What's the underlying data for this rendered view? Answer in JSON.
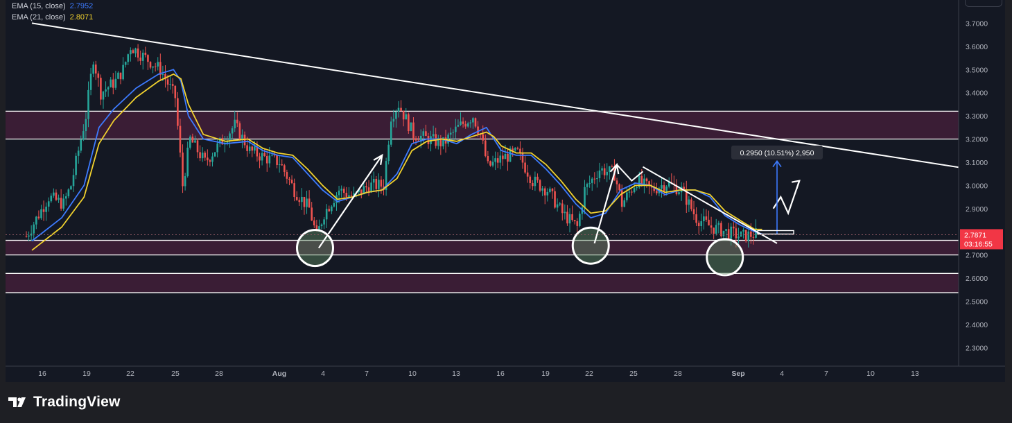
{
  "brand": {
    "name": "TradingView"
  },
  "legend": [
    {
      "label": "EMA (15, close)",
      "value": "2.7952",
      "color": "#3d7bff"
    },
    {
      "label": "EMA (21, close)",
      "value": "2.8071",
      "color": "#f2d22e"
    }
  ],
  "price_label": {
    "value": "2.7871",
    "countdown": "03:16:55",
    "color": "#f23645"
  },
  "measure_label": "0.2950 (10.51%) 2,950",
  "colors": {
    "background": "#141823",
    "zone": "#3a1d35",
    "ema15": "#3d7bff",
    "ema21": "#f2d22e",
    "up": "#26a69a",
    "down": "#ef5350"
  },
  "chart_data": {
    "type": "line",
    "y_ticks": [
      "3.7000",
      "3.6000",
      "3.5000",
      "3.4000",
      "3.3000",
      "3.2000",
      "3.1000",
      "3.0000",
      "2.9000",
      "2.8000",
      "2.7000",
      "2.6000",
      "2.5000",
      "2.4000",
      "2.3000"
    ],
    "x_ticks": [
      "16",
      "19",
      "22",
      "25",
      "28",
      "Aug",
      "4",
      "7",
      "10",
      "13",
      "16",
      "19",
      "22",
      "25",
      "28",
      "Sep",
      "4",
      "7",
      "10",
      "13"
    ],
    "ylim": [
      2.22,
      3.8
    ],
    "zones": [
      [
        3.2,
        3.32
      ],
      [
        2.7,
        2.763
      ],
      [
        2.537,
        2.62
      ]
    ],
    "series": [
      {
        "name": "EMA (15, close)",
        "color": "#3d7bff",
        "points": [
          [
            0,
            2.76
          ],
          [
            4,
            2.86
          ],
          [
            7,
            3.0
          ],
          [
            9,
            3.25
          ],
          [
            11,
            3.33
          ],
          [
            14,
            3.42
          ],
          [
            17,
            3.48
          ],
          [
            19,
            3.5
          ],
          [
            20,
            3.45
          ],
          [
            21,
            3.3
          ],
          [
            23,
            3.2
          ],
          [
            26,
            3.18
          ],
          [
            29,
            3.19
          ],
          [
            31,
            3.15
          ],
          [
            33,
            3.13
          ],
          [
            35,
            3.12
          ],
          [
            37,
            3.05
          ],
          [
            39,
            2.98
          ],
          [
            41,
            2.93
          ],
          [
            43,
            2.95
          ],
          [
            45,
            2.97
          ],
          [
            47,
            2.98
          ],
          [
            49,
            3.05
          ],
          [
            51,
            3.18
          ],
          [
            53,
            3.2
          ],
          [
            55,
            3.2
          ],
          [
            57,
            3.18
          ],
          [
            59,
            3.22
          ],
          [
            61,
            3.25
          ],
          [
            62,
            3.2
          ],
          [
            63,
            3.15
          ],
          [
            65,
            3.13
          ],
          [
            67,
            3.13
          ],
          [
            69,
            3.07
          ],
          [
            71,
            3.0
          ],
          [
            73,
            2.92
          ],
          [
            75,
            2.86
          ],
          [
            77,
            2.88
          ],
          [
            79,
            2.98
          ],
          [
            81,
            3.01
          ],
          [
            83,
            3.0
          ],
          [
            85,
            2.96
          ],
          [
            87,
            2.98
          ],
          [
            89,
            2.98
          ],
          [
            91,
            2.95
          ],
          [
            93,
            2.87
          ],
          [
            95,
            2.83
          ],
          [
            97,
            2.8
          ],
          [
            98,
            2.79
          ]
        ]
      },
      {
        "name": "EMA (21, close)",
        "color": "#f2d22e",
        "points": [
          [
            0,
            2.72
          ],
          [
            4,
            2.82
          ],
          [
            7,
            2.95
          ],
          [
            9,
            3.18
          ],
          [
            11,
            3.28
          ],
          [
            14,
            3.38
          ],
          [
            17,
            3.45
          ],
          [
            19,
            3.48
          ],
          [
            20,
            3.46
          ],
          [
            21,
            3.35
          ],
          [
            23,
            3.22
          ],
          [
            26,
            3.19
          ],
          [
            29,
            3.2
          ],
          [
            31,
            3.16
          ],
          [
            33,
            3.14
          ],
          [
            35,
            3.13
          ],
          [
            37,
            3.07
          ],
          [
            39,
            3.0
          ],
          [
            41,
            2.94
          ],
          [
            43,
            2.95
          ],
          [
            45,
            2.97
          ],
          [
            47,
            2.98
          ],
          [
            49,
            3.03
          ],
          [
            51,
            3.15
          ],
          [
            53,
            3.19
          ],
          [
            55,
            3.2
          ],
          [
            57,
            3.19
          ],
          [
            59,
            3.21
          ],
          [
            61,
            3.23
          ],
          [
            62,
            3.21
          ],
          [
            63,
            3.17
          ],
          [
            65,
            3.14
          ],
          [
            67,
            3.14
          ],
          [
            69,
            3.09
          ],
          [
            71,
            3.02
          ],
          [
            73,
            2.94
          ],
          [
            75,
            2.88
          ],
          [
            77,
            2.89
          ],
          [
            79,
            2.96
          ],
          [
            81,
            3.0
          ],
          [
            83,
            3.0
          ],
          [
            85,
            2.97
          ],
          [
            87,
            2.98
          ],
          [
            89,
            2.98
          ],
          [
            91,
            2.96
          ],
          [
            93,
            2.89
          ],
          [
            95,
            2.85
          ],
          [
            97,
            2.81
          ],
          [
            98,
            2.81
          ]
        ]
      }
    ],
    "candle_path": [
      [
        0,
        2.78
      ],
      [
        3,
        2.95
      ],
      [
        5,
        2.92
      ],
      [
        6,
        3.0
      ],
      [
        8,
        3.3
      ],
      [
        9,
        3.55
      ],
      [
        10,
        3.4
      ],
      [
        12,
        3.45
      ],
      [
        13,
        3.5
      ],
      [
        14,
        3.6
      ],
      [
        16,
        3.55
      ],
      [
        18,
        3.5
      ],
      [
        20,
        3.38
      ],
      [
        21,
        3.0
      ],
      [
        22,
        3.2
      ],
      [
        24,
        3.1
      ],
      [
        26,
        3.18
      ],
      [
        28,
        3.26
      ],
      [
        30,
        3.15
      ],
      [
        32,
        3.12
      ],
      [
        34,
        3.1
      ],
      [
        36,
        2.98
      ],
      [
        38,
        2.9
      ],
      [
        39,
        2.78
      ],
      [
        40,
        2.88
      ],
      [
        42,
        2.98
      ],
      [
        44,
        2.95
      ],
      [
        46,
        3.0
      ],
      [
        48,
        3.0
      ],
      [
        49,
        3.3
      ],
      [
        50,
        3.35
      ],
      [
        52,
        3.22
      ],
      [
        54,
        3.2
      ],
      [
        56,
        3.18
      ],
      [
        58,
        3.25
      ],
      [
        60,
        3.3
      ],
      [
        61,
        3.22
      ],
      [
        62,
        3.08
      ],
      [
        64,
        3.12
      ],
      [
        66,
        3.14
      ],
      [
        68,
        3.02
      ],
      [
        70,
        2.98
      ],
      [
        72,
        2.88
      ],
      [
        74,
        2.82
      ],
      [
        75,
        2.98
      ],
      [
        77,
        3.07
      ],
      [
        79,
        3.05
      ],
      [
        80,
        2.92
      ],
      [
        82,
        3.02
      ],
      [
        84,
        2.98
      ],
      [
        86,
        3.01
      ],
      [
        88,
        2.98
      ],
      [
        90,
        2.86
      ],
      [
        92,
        2.82
      ],
      [
        94,
        2.8
      ],
      [
        96,
        2.78
      ],
      [
        98,
        2.79
      ]
    ],
    "annotations": [
      {
        "kind": "trendline",
        "from": [
          0,
          3.7
        ],
        "to": [
          150,
          2.95
        ]
      },
      {
        "kind": "trendline",
        "from": [
          82,
          3.08
        ],
        "to": [
          100,
          2.75
        ]
      },
      {
        "kind": "circle",
        "x": 38,
        "y": 2.73
      },
      {
        "kind": "circle",
        "x": 75,
        "y": 2.74
      },
      {
        "kind": "circle",
        "x": 93,
        "y": 2.69
      }
    ]
  }
}
